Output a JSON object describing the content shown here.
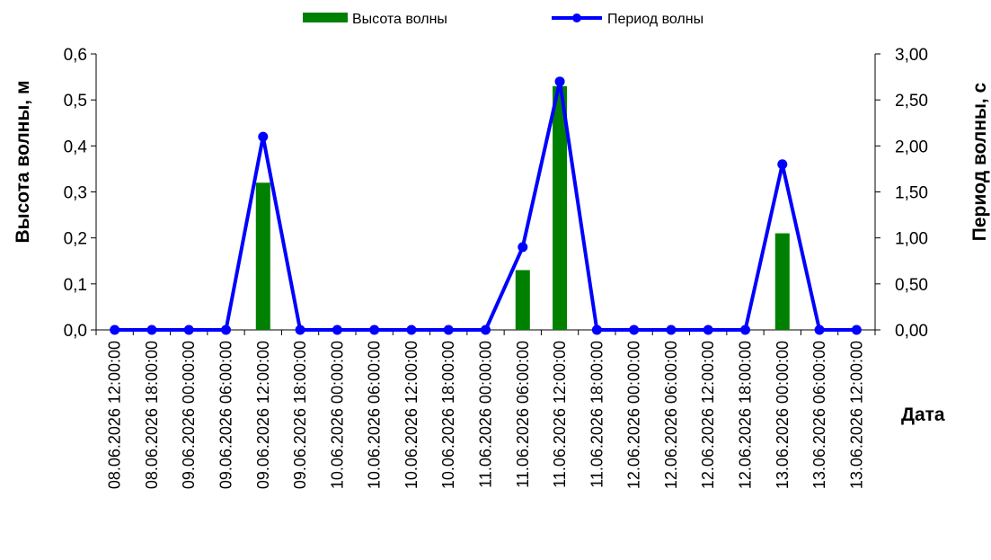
{
  "chart_data": {
    "type": "bar+line",
    "title": "",
    "x": [
      "08.06.2026 12:00:00",
      "08.06.2026 18:00:00",
      "09.06.2026 00:00:00",
      "09.06.2026 06:00:00",
      "09.06.2026 12:00:00",
      "09.06.2026 18:00:00",
      "10.06.2026 00:00:00",
      "10.06.2026 06:00:00",
      "10.06.2026 12:00:00",
      "10.06.2026 18:00:00",
      "11.06.2026 00:00:00",
      "11.06.2026 06:00:00",
      "11.06.2026 12:00:00",
      "11.06.2026 18:00:00",
      "12.06.2026 00:00:00",
      "12.06.2026 06:00:00",
      "12.06.2026 12:00:00",
      "12.06.2026 18:00:00",
      "13.06.2026 00:00:00",
      "13.06.2026 06:00:00",
      "13.06.2026 12:00:00"
    ],
    "xlabel": "Дата",
    "series": [
      {
        "name": "Высота волны",
        "kind": "bar",
        "axis": "left",
        "color": "#008000",
        "values": [
          0,
          0,
          0,
          0,
          0.32,
          0,
          0,
          0,
          0,
          0,
          0,
          0.13,
          0.53,
          0,
          0,
          0,
          0,
          0,
          0.21,
          0,
          0
        ]
      },
      {
        "name": "Период волны",
        "kind": "line",
        "axis": "right",
        "color": "#0000ff",
        "values": [
          0,
          0,
          0,
          0,
          2.1,
          0,
          0,
          0,
          0,
          0,
          0,
          0.9,
          2.7,
          0,
          0,
          0,
          0,
          0,
          1.8,
          0,
          0
        ]
      }
    ],
    "y_left": {
      "label": "Высота волны, м",
      "range": [
        0,
        0.6
      ],
      "ticks": [
        "0,0",
        "0,1",
        "0,2",
        "0,3",
        "0,4",
        "0,5",
        "0,6"
      ]
    },
    "y_right": {
      "label": "Период волны, с",
      "range": [
        0,
        3
      ],
      "ticks": [
        "0,00",
        "0,50",
        "1,00",
        "1,50",
        "2,00",
        "2,50",
        "3,00"
      ]
    },
    "grid": false,
    "legend": "top-center"
  }
}
